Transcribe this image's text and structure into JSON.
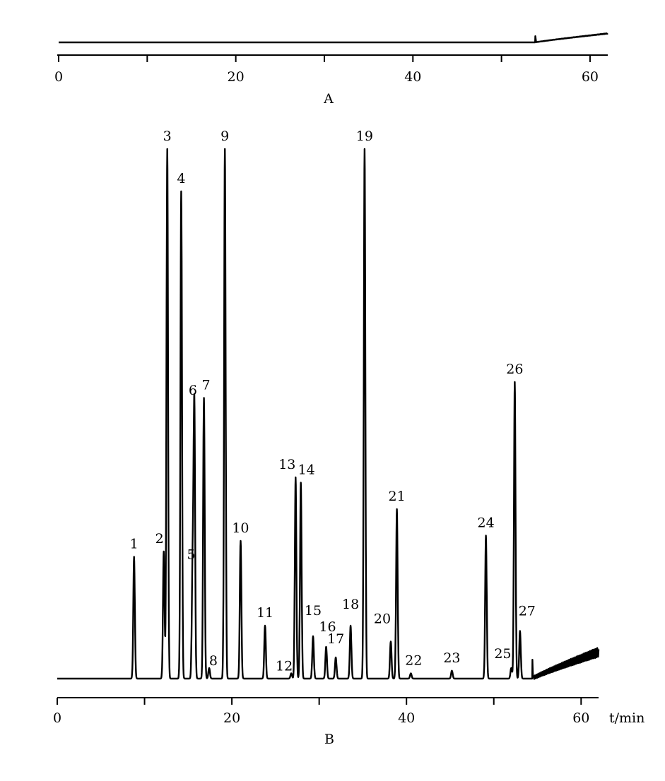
{
  "chart_data": [
    {
      "panel_label": "A",
      "type": "line",
      "x_unit": "",
      "xlim": [
        0,
        62
      ],
      "x_ticks": [
        0,
        20,
        40,
        60
      ],
      "x_tick_labels": [
        "0",
        "20",
        "40",
        "60"
      ],
      "baseline_drift": {
        "start": 53.8,
        "end": 62,
        "spike_at": 53.8,
        "spike_height": 0.22,
        "end_level": 0.28
      },
      "peaks": []
    },
    {
      "panel_label": "B",
      "type": "line",
      "x_unit": "t/min",
      "xlim": [
        0,
        62
      ],
      "x_ticks": [
        0,
        20,
        40,
        60
      ],
      "x_tick_labels": [
        "0",
        "20",
        "40",
        "60"
      ],
      "baseline_drift": {
        "start": 54.4,
        "end": 62,
        "spike_at": 54.4,
        "spike_height": 0.04,
        "end_level": 0.05
      },
      "peaks": [
        {
          "label": "1",
          "t": 8.8,
          "h": 0.23
        },
        {
          "label": "2",
          "t": 12.2,
          "h": 0.24
        },
        {
          "label": "3",
          "t": 12.6,
          "h": 1.0
        },
        {
          "label": "4",
          "t": 14.2,
          "h": 0.92
        },
        {
          "label": "5",
          "t": 15.5,
          "h": 0.21
        },
        {
          "label": "6",
          "t": 15.7,
          "h": 0.52
        },
        {
          "label": "7",
          "t": 16.8,
          "h": 0.53
        },
        {
          "label": "8",
          "t": 17.4,
          "h": 0.02
        },
        {
          "label": "9",
          "t": 19.2,
          "h": 1.0
        },
        {
          "label": "10",
          "t": 21.0,
          "h": 0.26
        },
        {
          "label": "11",
          "t": 23.8,
          "h": 0.1
        },
        {
          "label": "12",
          "t": 26.8,
          "h": 0.01
        },
        {
          "label": "13",
          "t": 27.3,
          "h": 0.38
        },
        {
          "label": "14",
          "t": 27.9,
          "h": 0.37
        },
        {
          "label": "15",
          "t": 29.3,
          "h": 0.08
        },
        {
          "label": "16",
          "t": 30.8,
          "h": 0.06
        },
        {
          "label": "17",
          "t": 31.9,
          "h": 0.04
        },
        {
          "label": "18",
          "t": 33.6,
          "h": 0.1
        },
        {
          "label": "19",
          "t": 35.2,
          "h": 1.0
        },
        {
          "label": "20",
          "t": 38.2,
          "h": 0.07
        },
        {
          "label": "21",
          "t": 38.9,
          "h": 0.32
        },
        {
          "label": "22",
          "t": 40.5,
          "h": 0.01
        },
        {
          "label": "23",
          "t": 45.2,
          "h": 0.015
        },
        {
          "label": "24",
          "t": 49.1,
          "h": 0.27
        },
        {
          "label": "25",
          "t": 52.0,
          "h": 0.02
        },
        {
          "label": "26",
          "t": 52.4,
          "h": 0.56
        },
        {
          "label": "27",
          "t": 53.0,
          "h": 0.09
        }
      ]
    }
  ]
}
